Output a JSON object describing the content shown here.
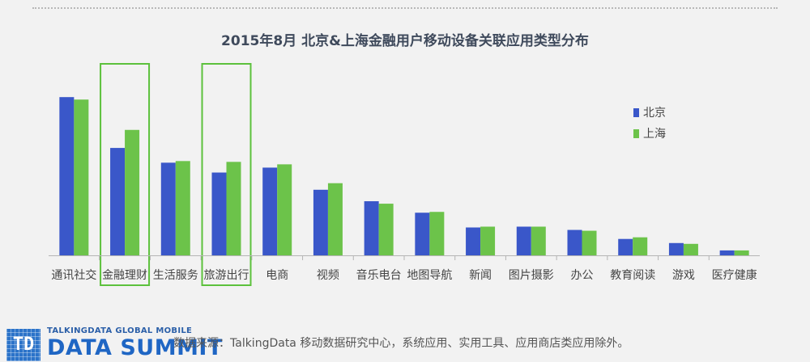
{
  "chart_data": {
    "type": "bar",
    "title": "2015年8月  北京&上海金融用户移动设备关联应用类型分布",
    "categories": [
      "通讯社交",
      "金融理财",
      "生活服务",
      "旅游出行",
      "电商",
      "视频",
      "音乐电台",
      "地图导航",
      "新闻",
      "图片摄影",
      "办公",
      "教育阅读",
      "游戏",
      "医疗健康"
    ],
    "series": [
      {
        "name": "北京",
        "color": "#3a57c9",
        "values": [
          193,
          131,
          113,
          101,
          107,
          80,
          66,
          52,
          34,
          35,
          31,
          20,
          15,
          6
        ]
      },
      {
        "name": "上海",
        "color": "#6cc34a",
        "values": [
          190,
          153,
          115,
          114,
          111,
          88,
          63,
          53,
          35,
          35,
          30,
          22,
          14,
          6
        ]
      }
    ],
    "ylim": [
      0,
      205
    ],
    "highlighted_categories": [
      "金融理财",
      "旅游出行"
    ],
    "highlight_color": "#5cc13c",
    "legend": "right",
    "grid": false
  },
  "footer": {
    "logo_mark": "TD",
    "logo_sub": "TALKINGDATA GLOBAL MOBILE",
    "logo_main": "DATA SUMMIT",
    "source": "数据来源：TalkingData 移动数据研究中心，系统应用、实用工具、应用商店类应用除外。"
  }
}
